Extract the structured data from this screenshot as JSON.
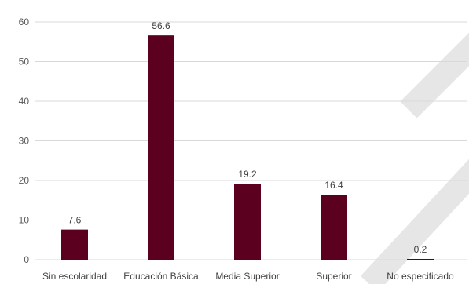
{
  "chart_data": {
    "type": "bar",
    "categories": [
      "Sin escolaridad",
      "Educación Básica",
      "Media Superior",
      "Superior",
      "No especificado"
    ],
    "values": [
      7.6,
      56.6,
      19.2,
      16.4,
      0.2
    ],
    "data_labels": [
      "7.6",
      "56.6",
      "19.2",
      "16.4",
      "0.2"
    ],
    "y_ticks": [
      "0",
      "10",
      "20",
      "30",
      "40",
      "50",
      "60"
    ],
    "ylim": [
      0,
      60
    ],
    "grid": true,
    "legend": "none",
    "bar_color": "#5c0020",
    "grid_color": "#d9d9d9",
    "watermark_color": "#e6e6e6"
  }
}
